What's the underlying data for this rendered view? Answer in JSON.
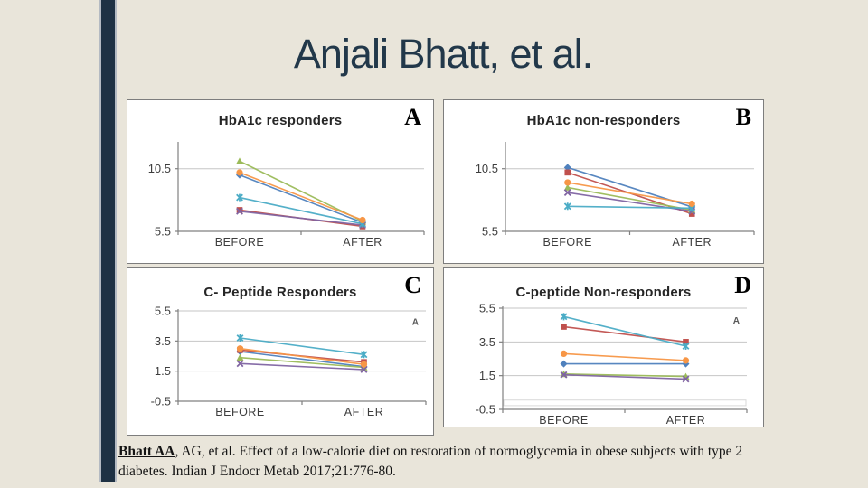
{
  "slide": {
    "title": "Anjali Bhatt, et al.",
    "citation": {
      "lead": "Bhatt AA",
      "text": ", AG, et al. Effect of a low-calorie diet on restoration of normoglycemia in obese subjects with type 2 diabetes. Indian J Endocr Metab 2017;21:776-80."
    },
    "colors": {
      "background": "#e9e5da",
      "accent_bar": "#1e3143",
      "accent_bar_edge": "#b4bac2",
      "title_text": "#22384a",
      "panel_border": "#7d7d7d",
      "gridline": "#c6c6c6",
      "axis": "#808080",
      "tick_text": "#3d3d3d"
    }
  },
  "chart_data": [
    {
      "type": "line",
      "panel_label": "A",
      "title": "HbA1c responders",
      "categories": [
        "BEFORE",
        "AFTER"
      ],
      "ylim": [
        5.5,
        12.5
      ],
      "yticks": [
        5.5,
        10.5
      ],
      "grid": true,
      "legend": "none",
      "series": [
        {
          "color": "#4F81BD",
          "marker": "diamond",
          "values": [
            10.0,
            6.2
          ]
        },
        {
          "color": "#C0504D",
          "marker": "square",
          "values": [
            7.2,
            5.9
          ]
        },
        {
          "color": "#9BBB59",
          "marker": "triangle",
          "values": [
            11.1,
            6.3
          ]
        },
        {
          "color": "#8064A2",
          "marker": "x",
          "values": [
            7.1,
            6.0
          ]
        },
        {
          "color": "#4BACC6",
          "marker": "star",
          "values": [
            8.2,
            6.1
          ]
        },
        {
          "color": "#F79646",
          "marker": "circle",
          "values": [
            10.2,
            6.4
          ]
        }
      ]
    },
    {
      "type": "line",
      "panel_label": "B",
      "title": "HbA1c non-responders",
      "categories": [
        "BEFORE",
        "AFTER"
      ],
      "ylim": [
        5.5,
        12.5
      ],
      "yticks": [
        5.5,
        10.5
      ],
      "grid": true,
      "legend": "none",
      "series": [
        {
          "color": "#4F81BD",
          "marker": "diamond",
          "values": [
            10.6,
            7.45
          ]
        },
        {
          "color": "#C0504D",
          "marker": "square",
          "values": [
            10.2,
            6.9
          ]
        },
        {
          "color": "#9BBB59",
          "marker": "triangle",
          "values": [
            9.0,
            7.2
          ]
        },
        {
          "color": "#8064A2",
          "marker": "x",
          "values": [
            8.6,
            7.1
          ]
        },
        {
          "color": "#4BACC6",
          "marker": "star",
          "values": [
            7.5,
            7.35
          ]
        },
        {
          "color": "#F79646",
          "marker": "circle",
          "values": [
            9.4,
            7.7
          ]
        }
      ]
    },
    {
      "type": "line",
      "panel_label": "C",
      "title": "C- Peptide Responders",
      "inner_annotation": "A",
      "categories": [
        "BEFORE",
        "AFTER"
      ],
      "ylim": [
        -0.5,
        5.5
      ],
      "yticks": [
        -0.5,
        1.5,
        3.5,
        5.5
      ],
      "grid": true,
      "legend": "none",
      "series": [
        {
          "color": "#4F81BD",
          "marker": "diamond",
          "values": [
            2.8,
            1.8
          ]
        },
        {
          "color": "#C0504D",
          "marker": "square",
          "values": [
            2.9,
            2.1
          ]
        },
        {
          "color": "#9BBB59",
          "marker": "triangle",
          "values": [
            2.4,
            1.75
          ]
        },
        {
          "color": "#8064A2",
          "marker": "x",
          "values": [
            2.0,
            1.6
          ]
        },
        {
          "color": "#4BACC6",
          "marker": "star",
          "values": [
            3.7,
            2.6
          ]
        },
        {
          "color": "#F79646",
          "marker": "circle",
          "values": [
            3.0,
            1.95
          ]
        }
      ]
    },
    {
      "type": "line",
      "panel_label": "D",
      "title": "C-peptide Non-responders",
      "inner_annotation": "A",
      "artifact_band": true,
      "categories": [
        "BEFORE",
        "AFTER"
      ],
      "ylim": [
        -0.5,
        5.5
      ],
      "yticks": [
        -0.5,
        1.5,
        3.5,
        5.5
      ],
      "grid": true,
      "legend": "none",
      "series": [
        {
          "color": "#4F81BD",
          "marker": "diamond",
          "values": [
            2.2,
            2.2
          ]
        },
        {
          "color": "#C0504D",
          "marker": "square",
          "values": [
            4.4,
            3.5
          ]
        },
        {
          "color": "#9BBB59",
          "marker": "triangle",
          "values": [
            1.6,
            1.45
          ]
        },
        {
          "color": "#8064A2",
          "marker": "x",
          "values": [
            1.55,
            1.3
          ]
        },
        {
          "color": "#4BACC6",
          "marker": "star",
          "values": [
            5.0,
            3.25
          ]
        },
        {
          "color": "#F79646",
          "marker": "circle",
          "values": [
            2.8,
            2.4
          ]
        }
      ]
    }
  ]
}
